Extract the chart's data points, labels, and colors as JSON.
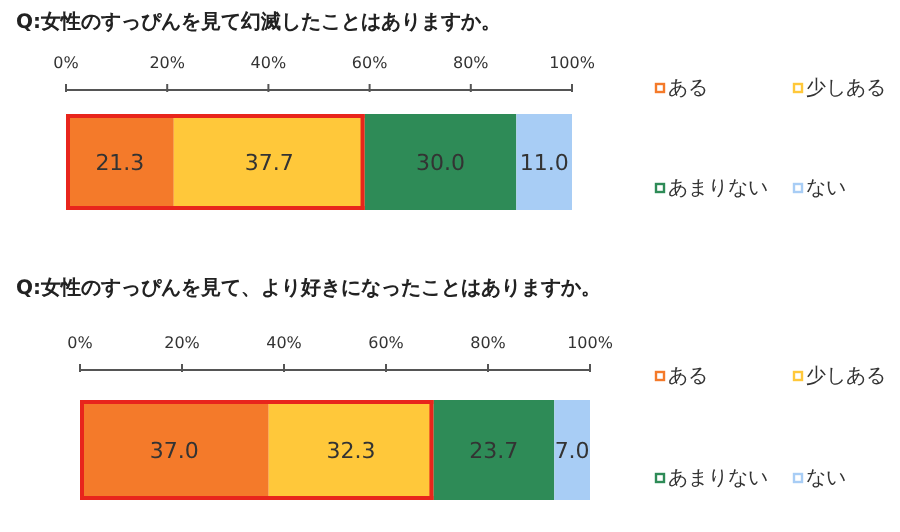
{
  "chart_data": [
    {
      "type": "bar",
      "orientation": "horizontal",
      "stacked": true,
      "title": "Q:女性のすっぴんを見て幻滅したことはありますか。",
      "categories": [
        null
      ],
      "xlim": [
        0,
        100
      ],
      "xticks": [
        {
          "value": 0,
          "label": "0%"
        },
        {
          "value": 20,
          "label": "20%"
        },
        {
          "value": 40,
          "label": "40%"
        },
        {
          "value": 60,
          "label": "60%"
        },
        {
          "value": 80,
          "label": "80%"
        },
        {
          "value": 100,
          "label": "100%"
        }
      ],
      "legend": "right",
      "grid": false,
      "series": [
        {
          "name": "ある",
          "color": "#f47a2a",
          "values": [
            21.3
          ],
          "value_labels": [
            "21.3"
          ]
        },
        {
          "name": "少しある",
          "color": "#ffc83a",
          "values": [
            37.7
          ],
          "value_labels": [
            "37.7"
          ]
        },
        {
          "name": "あまりない",
          "color": "#2e8b57",
          "values": [
            30.0
          ],
          "value_labels": [
            "30.0"
          ]
        },
        {
          "name": "ない",
          "color": "#a8cdf5",
          "values": [
            11.0
          ],
          "value_labels": [
            "11.0"
          ]
        }
      ]
    },
    {
      "type": "bar",
      "orientation": "horizontal",
      "stacked": true,
      "title": "Q:女性のすっぴんを見て、より好きになったことはありますか。",
      "categories": [
        null
      ],
      "xlim": [
        0,
        100
      ],
      "xticks": [
        {
          "value": 0,
          "label": "0%"
        },
        {
          "value": 20,
          "label": "20%"
        },
        {
          "value": 40,
          "label": "40%"
        },
        {
          "value": 60,
          "label": "60%"
        },
        {
          "value": 80,
          "label": "80%"
        },
        {
          "value": 100,
          "label": "100%"
        }
      ],
      "legend": "right",
      "grid": false,
      "series": [
        {
          "name": "ある",
          "color": "#f47a2a",
          "values": [
            37.0
          ],
          "value_labels": [
            "37.0"
          ]
        },
        {
          "name": "少しある",
          "color": "#ffc83a",
          "values": [
            32.3
          ],
          "value_labels": [
            "32.3"
          ]
        },
        {
          "name": "あまりない",
          "color": "#2e8b57",
          "values": [
            23.7
          ],
          "value_labels": [
            "23.7"
          ]
        },
        {
          "name": "ない",
          "color": "#a8cdf5",
          "values": [
            7.0
          ],
          "value_labels": [
            "7.0"
          ]
        }
      ]
    }
  ]
}
